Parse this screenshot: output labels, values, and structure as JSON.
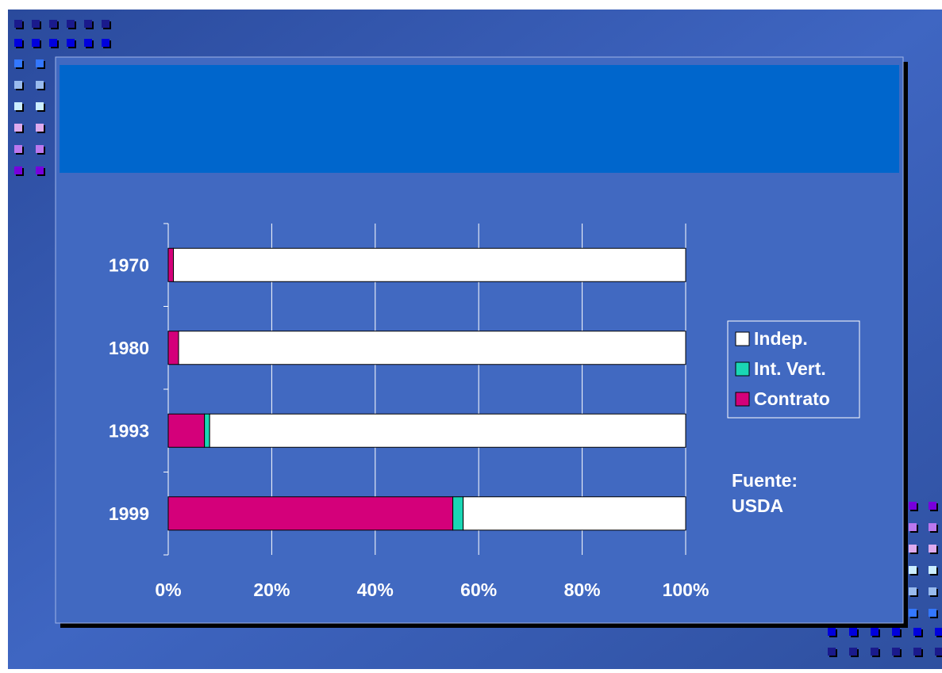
{
  "chart_data": {
    "type": "bar",
    "orientation": "horizontal",
    "stacked": true,
    "categories": [
      "1970",
      "1980",
      "1993",
      "1999"
    ],
    "series": [
      {
        "name": "Contrato",
        "color": "#d4007a",
        "values": [
          1,
          2,
          7,
          55
        ]
      },
      {
        "name": "Int. Vert.",
        "color": "#1ad6b4",
        "values": [
          0,
          0,
          1,
          2
        ]
      },
      {
        "name": "Indep.",
        "color": "#ffffff",
        "values": [
          99,
          98,
          92,
          43
        ]
      }
    ],
    "xlim": [
      0,
      100
    ],
    "xticks": [
      {
        "value": 0,
        "label": "0%"
      },
      {
        "value": 20,
        "label": "20%"
      },
      {
        "value": 40,
        "label": "40%"
      },
      {
        "value": 60,
        "label": "60%"
      },
      {
        "value": 80,
        "label": "80%"
      },
      {
        "value": 100,
        "label": "100%"
      }
    ],
    "grid": true,
    "annotations": [
      "Fuente:",
      "USDA"
    ]
  }
}
